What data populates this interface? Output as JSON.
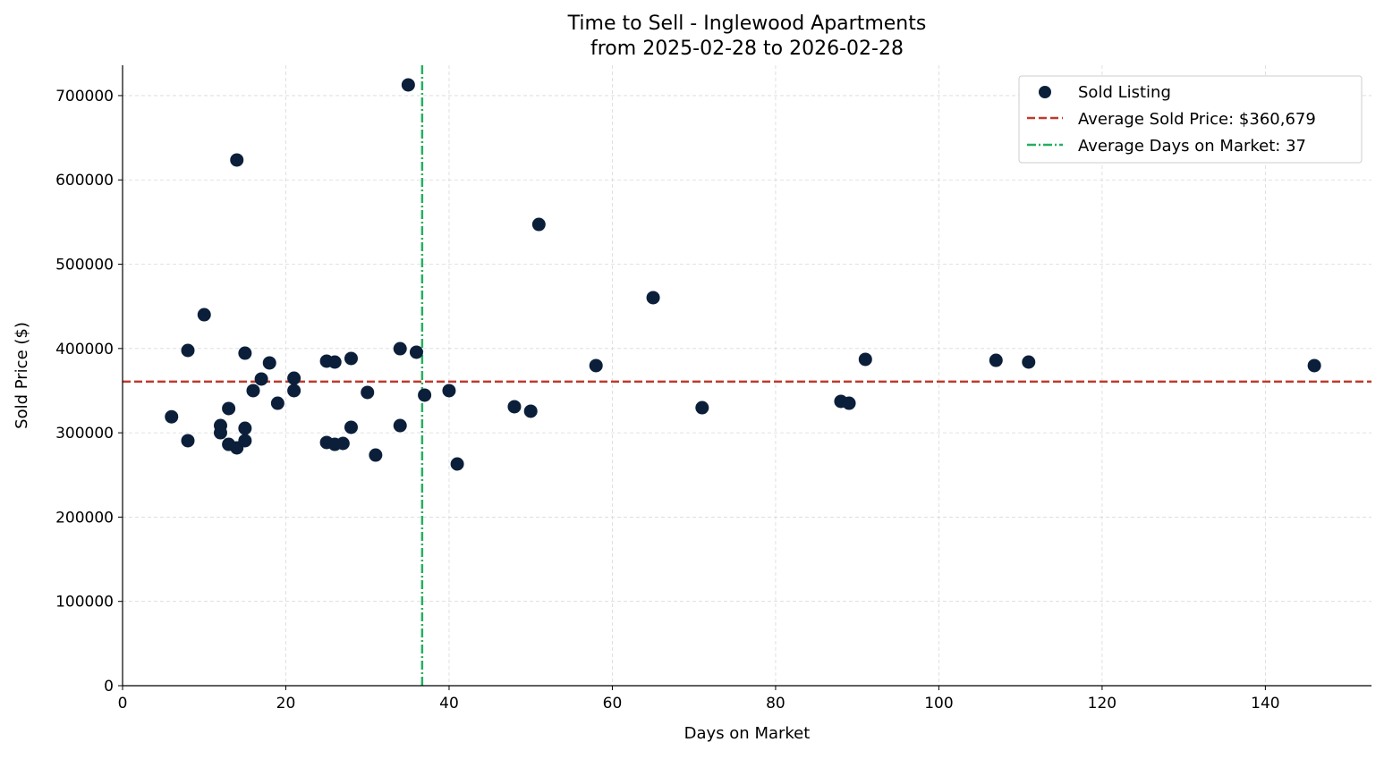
{
  "chart_data": {
    "type": "scatter",
    "title": "Time to Sell - Inglewood Apartments",
    "subtitle": "from 2025-02-28 to 2026-02-28",
    "xlabel": "Days on Market",
    "ylabel": "Sold Price ($)",
    "xlim": [
      0,
      153
    ],
    "ylim": [
      0,
      736000
    ],
    "xticks": [
      0,
      20,
      40,
      60,
      80,
      100,
      120,
      140
    ],
    "yticks": [
      0,
      100000,
      200000,
      300000,
      400000,
      500000,
      600000,
      700000
    ],
    "grid": true,
    "legend_placement": "top-right",
    "colors": {
      "points": "#0b1f3a",
      "avg_price": "#c0392b",
      "avg_days": "#27ae60",
      "grid": "#d9d9d9"
    },
    "series": [
      {
        "name": "Sold Listing",
        "points": [
          [
            6,
            319000
          ],
          [
            8,
            397700
          ],
          [
            8,
            290600
          ],
          [
            10,
            440100
          ],
          [
            12,
            308600
          ],
          [
            12,
            300100
          ],
          [
            13,
            328800
          ],
          [
            13,
            286300
          ],
          [
            14,
            623600
          ],
          [
            14,
            282100
          ],
          [
            15,
            394500
          ],
          [
            15,
            305400
          ],
          [
            15,
            290600
          ],
          [
            16,
            350000
          ],
          [
            17,
            363800
          ],
          [
            18,
            382900
          ],
          [
            19,
            335100
          ],
          [
            21,
            364800
          ],
          [
            21,
            350000
          ],
          [
            25,
            385000
          ],
          [
            25,
            288500
          ],
          [
            26,
            383900
          ],
          [
            26,
            286300
          ],
          [
            27,
            287400
          ],
          [
            28,
            388200
          ],
          [
            28,
            306500
          ],
          [
            30,
            347900
          ],
          [
            31,
            273600
          ],
          [
            34,
            399800
          ],
          [
            34,
            308600
          ],
          [
            35,
            712700
          ],
          [
            36,
            395600
          ],
          [
            37,
            344700
          ],
          [
            40,
            350000
          ],
          [
            41,
            263000
          ],
          [
            48,
            330900
          ],
          [
            50,
            325600
          ],
          [
            51,
            547200
          ],
          [
            58,
            379700
          ],
          [
            65,
            460300
          ],
          [
            71,
            329800
          ],
          [
            88,
            337300
          ],
          [
            89,
            335100
          ],
          [
            91,
            387100
          ],
          [
            107,
            386000
          ],
          [
            111,
            383900
          ],
          [
            146,
            379700
          ]
        ]
      }
    ],
    "reference_lines": {
      "avg_price": {
        "label": "Average Sold Price: $360,679",
        "value": 360679
      },
      "avg_days": {
        "label": "Average Days on Market: 37",
        "value": 36.7
      }
    }
  }
}
